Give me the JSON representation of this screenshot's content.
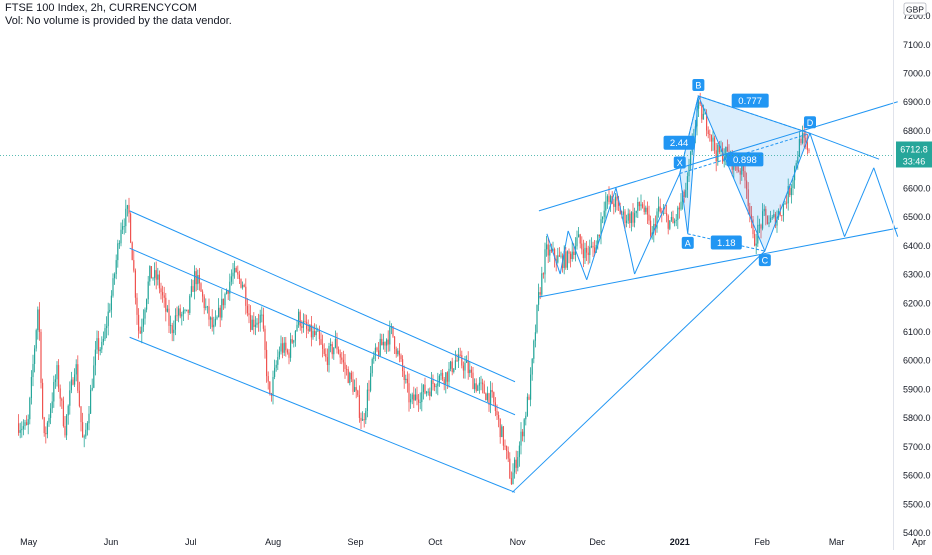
{
  "header": {
    "title": "FTSE 100 Index, 2h, CURRENCYCOM",
    "volume_note": "Vol: No volume is provided by the data vendor."
  },
  "price_axis": {
    "currency": "GBP",
    "ticks": [
      "7200.0",
      "7100.0",
      "7000.0",
      "6900.0",
      "6800.0",
      "6700.0",
      "6600.0",
      "6500.0",
      "6400.0",
      "6300.0",
      "6200.0",
      "6100.0",
      "6000.0",
      "5900.0",
      "5800.0",
      "5700.0",
      "5600.0",
      "5500.0",
      "5400.0"
    ],
    "current_price": "6712.8",
    "countdown": "33:46"
  },
  "time_axis": {
    "labels": [
      "May",
      "Jun",
      "Jul",
      "Aug",
      "Sep",
      "Oct",
      "Nov",
      "Dec",
      "2021",
      "Feb",
      "Mar",
      "Apr"
    ]
  },
  "colors": {
    "up": "#26a69a",
    "down": "#ef5350",
    "drawing": "#2196f3",
    "harmonic_fill": "#2196f3",
    "price_label": "#26a69a",
    "axis_text": "#131722"
  },
  "chart_data": {
    "type": "candlestick",
    "title": "FTSE 100 Index, 2h, CURRENCYCOM",
    "ylabel": "GBP",
    "ylim": [
      5400,
      7250
    ],
    "x_labels": [
      "May",
      "Jun",
      "Jul",
      "Aug",
      "Sep",
      "Oct",
      "Nov",
      "Dec",
      "2021",
      "Feb",
      "Mar",
      "Apr"
    ],
    "price_path": [
      [
        "2020-04-27",
        5780
      ],
      [
        "2020-05-01",
        5760
      ],
      [
        "2020-05-05",
        6200
      ],
      [
        "2020-05-07",
        5710
      ],
      [
        "2020-05-12",
        5960
      ],
      [
        "2020-05-15",
        5760
      ],
      [
        "2020-05-19",
        6000
      ],
      [
        "2020-05-22",
        5690
      ],
      [
        "2020-05-27",
        6050
      ],
      [
        "2020-05-29",
        6040
      ],
      [
        "2020-06-02",
        6250
      ],
      [
        "2020-06-05",
        6470
      ],
      [
        "2020-06-08",
        6520
      ],
      [
        "2020-06-12",
        6080
      ],
      [
        "2020-06-16",
        6300
      ],
      [
        "2020-06-19",
        6280
      ],
      [
        "2020-06-24",
        6100
      ],
      [
        "2020-06-26",
        6160
      ],
      [
        "2020-06-30",
        6150
      ],
      [
        "2020-07-03",
        6300
      ],
      [
        "2020-07-07",
        6180
      ],
      [
        "2020-07-10",
        6100
      ],
      [
        "2020-07-14",
        6220
      ],
      [
        "2020-07-17",
        6300
      ],
      [
        "2020-07-21",
        6270
      ],
      [
        "2020-07-24",
        6130
      ],
      [
        "2020-07-28",
        6150
      ],
      [
        "2020-07-31",
        5860
      ],
      [
        "2020-08-04",
        6050
      ],
      [
        "2020-08-07",
        6020
      ],
      [
        "2020-08-11",
        6150
      ],
      [
        "2020-08-14",
        6100
      ],
      [
        "2020-08-18",
        6080
      ],
      [
        "2020-08-21",
        6000
      ],
      [
        "2020-08-25",
        6060
      ],
      [
        "2020-08-28",
        5980
      ],
      [
        "2020-09-01",
        5900
      ],
      [
        "2020-09-04",
        5780
      ],
      [
        "2020-09-08",
        6000
      ],
      [
        "2020-09-11",
        6050
      ],
      [
        "2020-09-15",
        6100
      ],
      [
        "2020-09-18",
        6000
      ],
      [
        "2020-09-22",
        5850
      ],
      [
        "2020-09-25",
        5880
      ],
      [
        "2020-09-29",
        5900
      ],
      [
        "2020-10-02",
        5940
      ],
      [
        "2020-10-06",
        5950
      ],
      [
        "2020-10-09",
        6000
      ],
      [
        "2020-10-13",
        5980
      ],
      [
        "2020-10-16",
        5920
      ],
      [
        "2020-10-20",
        5890
      ],
      [
        "2020-10-23",
        5860
      ],
      [
        "2020-10-27",
        5720
      ],
      [
        "2020-10-30",
        5580
      ],
      [
        "2020-11-02",
        5700
      ],
      [
        "2020-11-06",
        5900
      ],
      [
        "2020-11-09",
        6200
      ],
      [
        "2020-11-12",
        6380
      ],
      [
        "2020-11-17",
        6350
      ],
      [
        "2020-11-20",
        6350
      ],
      [
        "2020-11-24",
        6420
      ],
      [
        "2020-11-27",
        6370
      ],
      [
        "2020-12-01",
        6400
      ],
      [
        "2020-12-04",
        6550
      ],
      [
        "2020-12-08",
        6550
      ],
      [
        "2020-12-11",
        6500
      ],
      [
        "2020-12-15",
        6500
      ],
      [
        "2020-12-18",
        6550
      ],
      [
        "2020-12-22",
        6430
      ],
      [
        "2020-12-24",
        6520
      ],
      [
        "2020-12-30",
        6470
      ],
      [
        "2021-01-04",
        6600
      ],
      [
        "2021-01-08",
        6880
      ],
      [
        "2021-01-12",
        6820
      ],
      [
        "2021-01-15",
        6720
      ],
      [
        "2021-01-19",
        6720
      ],
      [
        "2021-01-22",
        6680
      ],
      [
        "2021-01-26",
        6650
      ],
      [
        "2021-01-29",
        6410
      ],
      [
        "2021-02-02",
        6500
      ],
      [
        "2021-02-05",
        6480
      ],
      [
        "2021-02-09",
        6530
      ],
      [
        "2021-02-12",
        6600
      ],
      [
        "2021-02-16",
        6780
      ],
      [
        "2021-02-19",
        6710
      ]
    ],
    "drawings": {
      "descending_channel": {
        "upper": [
          [
            "2020-06-08",
            6520
          ],
          [
            "2020-10-31",
            5925
          ]
        ],
        "middle": [
          [
            "2020-06-08",
            6390
          ],
          [
            "2020-10-31",
            5810
          ]
        ],
        "lower": [
          [
            "2020-06-08",
            6080
          ],
          [
            "2020-10-31",
            5540
          ]
        ]
      },
      "rising_channel": {
        "upper": [
          [
            "2020-11-09",
            6520
          ],
          [
            "2021-03-24",
            6900
          ]
        ],
        "lower": [
          [
            "2020-11-09",
            6220
          ],
          [
            "2021-03-24",
            6460
          ]
        ]
      },
      "harmonic_pattern": {
        "points": [
          {
            "label": "X",
            "date": "2021-01-01",
            "price": 6650
          },
          {
            "label": "A",
            "date": "2021-01-04",
            "price": 6440
          },
          {
            "label": "B",
            "date": "2021-01-08",
            "price": 6920
          },
          {
            "label": "C",
            "date": "2021-02-02",
            "price": 6380
          },
          {
            "label": "D",
            "date": "2021-02-19",
            "price": 6790
          }
        ],
        "ratios": [
          "2.44",
          "0.777",
          "1.18",
          "0.898"
        ]
      }
    }
  }
}
